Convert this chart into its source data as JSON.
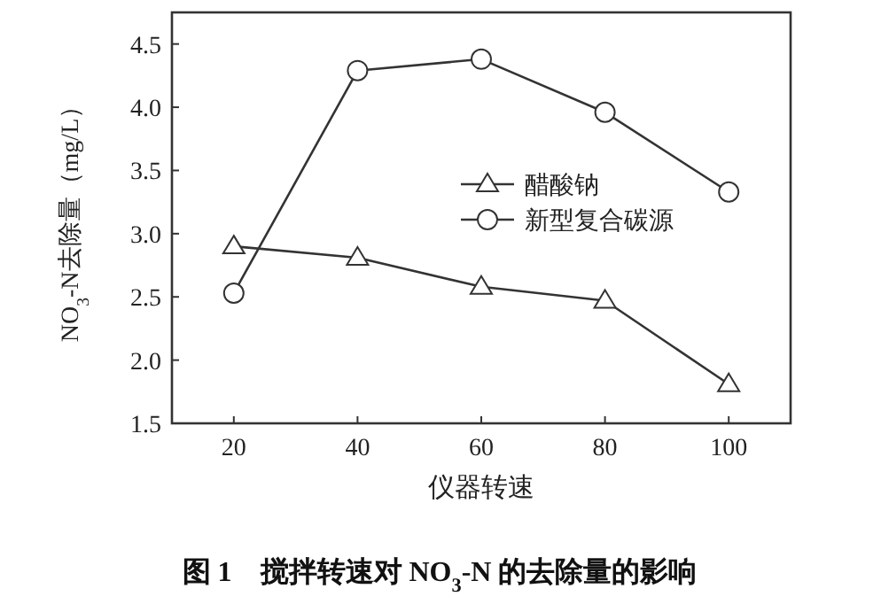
{
  "chart_data": {
    "type": "line",
    "xlabel": "仪器转速",
    "ylabel": "NO$_{3}$-N去除量（mg/L）",
    "x": [
      20,
      40,
      60,
      80,
      100
    ],
    "series": [
      {
        "name": "醋酸钠",
        "color": "#333333",
        "marker": "triangle",
        "values": [
          2.9,
          2.81,
          2.58,
          2.47,
          1.81
        ]
      },
      {
        "name": "新型复合碳源",
        "color": "#333333",
        "marker": "circle",
        "values": [
          2.53,
          4.29,
          4.38,
          3.96,
          3.33
        ]
      }
    ],
    "xlim": [
      10,
      110
    ],
    "xticks": [
      20,
      40,
      60,
      80,
      100
    ],
    "ylim": [
      1.5,
      4.75
    ],
    "yticks": [
      {
        "value": 1.5,
        "label": "1.5"
      },
      {
        "value": 2,
        "label": "2.0"
      },
      {
        "value": 2.5,
        "label": "2.5"
      },
      {
        "value": 3,
        "label": "3.0"
      },
      {
        "value": 3.5,
        "label": "3.5"
      },
      {
        "value": 4,
        "label": "4.0"
      },
      {
        "value": 4.5,
        "label": "4.5"
      }
    ],
    "legend": "right",
    "grid": false,
    "line_style": "solid",
    "annotations": [
      "图 1　搅拌转速对 NO$_{3}$-N 的去除量的影响"
    ]
  }
}
